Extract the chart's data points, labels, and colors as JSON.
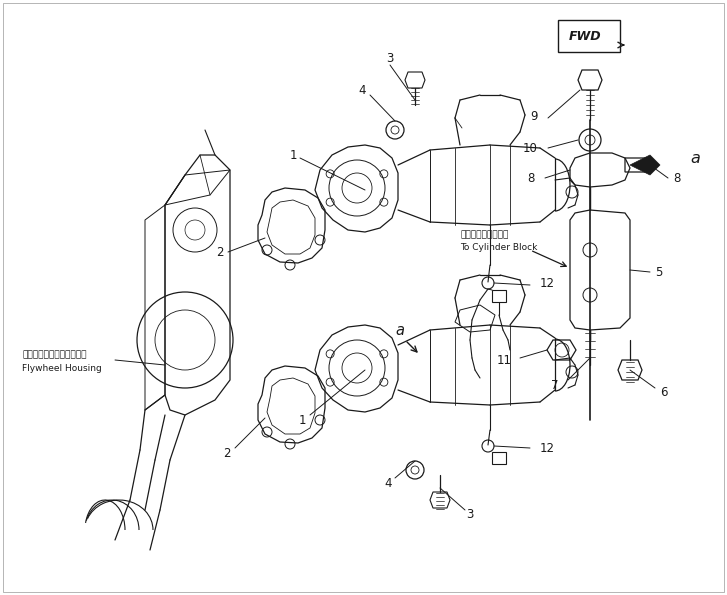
{
  "bg_color": "#ffffff",
  "line_color": "#2a2a2a",
  "figsize": [
    7.27,
    5.95
  ],
  "dpi": 100,
  "labels": {
    "flywheel_jp": "フライホイールハウジング",
    "flywheel_en": "Flywheel Housing",
    "cylinder_jp": "シリンダブロックへ",
    "cylinder_en": "To Cylinder Block",
    "fwd": "FWD"
  }
}
